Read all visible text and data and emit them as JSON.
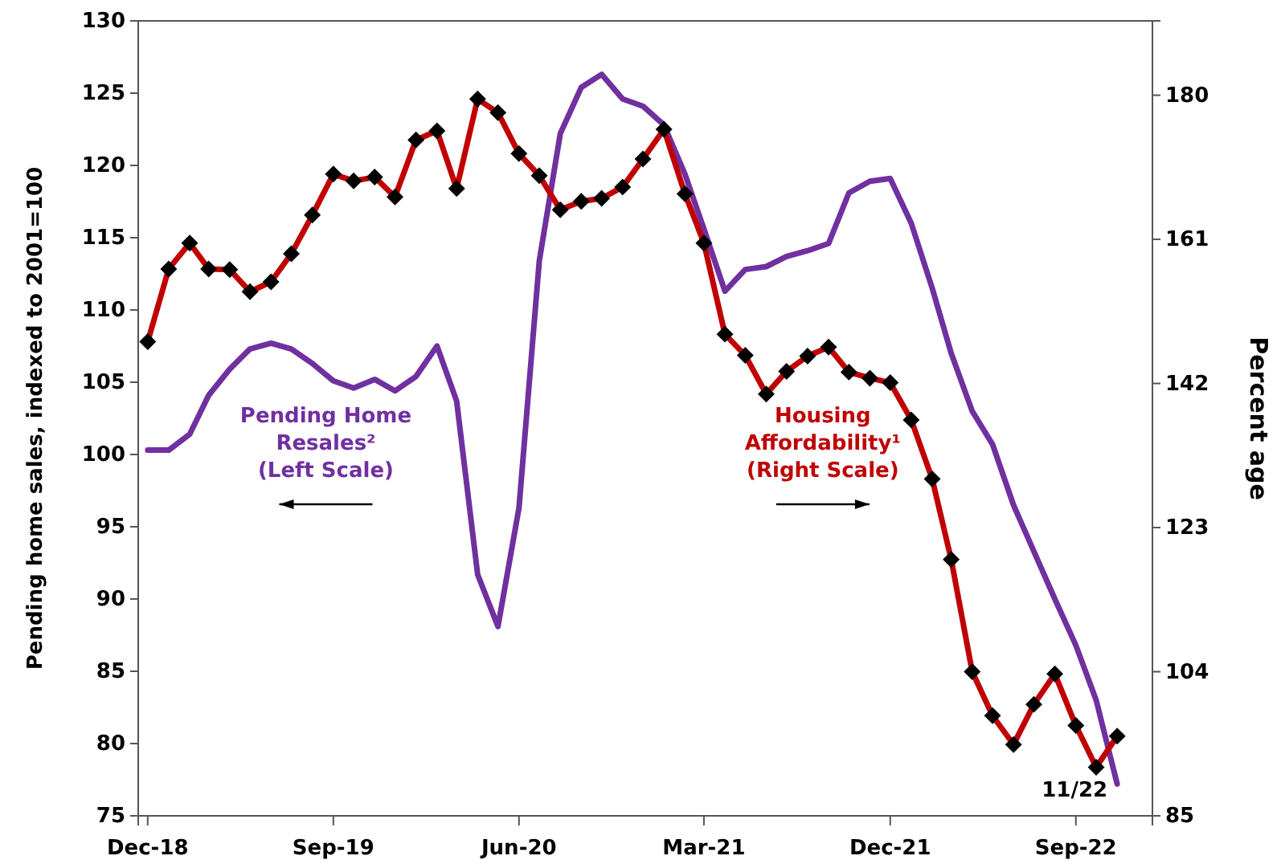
{
  "chart_data": {
    "type": "line",
    "ylabel": "Pending home sales, indexed to 2001=100",
    "y2label": "Percent age",
    "x": [
      "2018-12",
      "2019-01",
      "2019-02",
      "2019-03",
      "2019-04",
      "2019-05",
      "2019-06",
      "2019-07",
      "2019-08",
      "2019-09",
      "2019-10",
      "2019-11",
      "2019-12",
      "2020-01",
      "2020-02",
      "2020-03",
      "2020-04",
      "2020-05",
      "2020-06",
      "2020-07",
      "2020-08",
      "2020-09",
      "2020-10",
      "2020-11",
      "2020-12",
      "2021-01",
      "2021-02",
      "2021-03",
      "2021-04",
      "2021-05",
      "2021-06",
      "2021-07",
      "2021-08",
      "2021-09",
      "2021-10",
      "2021-11",
      "2021-12",
      "2022-01",
      "2022-02",
      "2022-03",
      "2022-04",
      "2022-05",
      "2022-06",
      "2022-07",
      "2022-08",
      "2022-09",
      "2022-10",
      "2022-11"
    ],
    "series": [
      {
        "name": "Pending Home\nResales²\n(Left Scale)",
        "color": "#7030a0",
        "marker": "none",
        "values": [
          100.3,
          100.3,
          101.4,
          104.1,
          105.9,
          107.3,
          107.7,
          107.3,
          106.3,
          105.1,
          104.6,
          105.2,
          104.4,
          105.4,
          107.5,
          103.7,
          91.7,
          88.1,
          96.3,
          113.4,
          122.2,
          125.4,
          126.3,
          124.6,
          124.1,
          122.8,
          119.4,
          115.6,
          111.3,
          112.8,
          113.0,
          113.7,
          114.1,
          114.6,
          118.1,
          118.9,
          119.1,
          116.0,
          111.5,
          107.0,
          103.0,
          100.7,
          96.5,
          93.3,
          90.0,
          86.8,
          83.0,
          77.2
        ]
      },
      {
        "name": "Housing\nAffordability¹\n(Right Scale)",
        "color": "#c00000",
        "axis": "y2",
        "marker": "diamond",
        "values": [
          147.5,
          157.1,
          160.5,
          157.1,
          157.0,
          154.1,
          155.4,
          159.1,
          164.2,
          169.6,
          168.7,
          169.2,
          166.6,
          174.1,
          175.3,
          167.7,
          179.5,
          177.7,
          172.3,
          169.4,
          164.9,
          166.0,
          166.4,
          167.9,
          171.6,
          175.5,
          167.0,
          160.5,
          148.5,
          145.7,
          140.6,
          143.6,
          145.6,
          146.8,
          143.5,
          142.7,
          142.1,
          137.2,
          129.4,
          118.8,
          104.0,
          98.2,
          94.4,
          99.7,
          103.7,
          96.9,
          91.4,
          95.5
        ]
      }
    ],
    "xlim": [
      "2018-11-17",
      "2022-12-23"
    ],
    "xticks": [
      {
        "value": "2018-12",
        "label": "Dec-18"
      },
      {
        "value": "2019-09",
        "label": "Sep-19"
      },
      {
        "value": "2020-06",
        "label": "Jun-20"
      },
      {
        "value": "2021-03",
        "label": "Mar-21"
      },
      {
        "value": "2021-12",
        "label": "Dec-21"
      },
      {
        "value": "2022-09",
        "label": "Sep-22"
      }
    ],
    "ylim": [
      75,
      130
    ],
    "yticks": [
      75,
      80,
      85,
      90,
      95,
      100,
      105,
      110,
      115,
      120,
      125,
      130
    ],
    "y2lim": [
      85,
      189.8
    ],
    "y2ticks": [
      85,
      104,
      123,
      142,
      161,
      180
    ],
    "annotations": [
      {
        "text": "11/22",
        "x": "2022-11",
        "y": 77.2
      }
    ],
    "grid": false,
    "legend": false,
    "line_style": "solid"
  }
}
